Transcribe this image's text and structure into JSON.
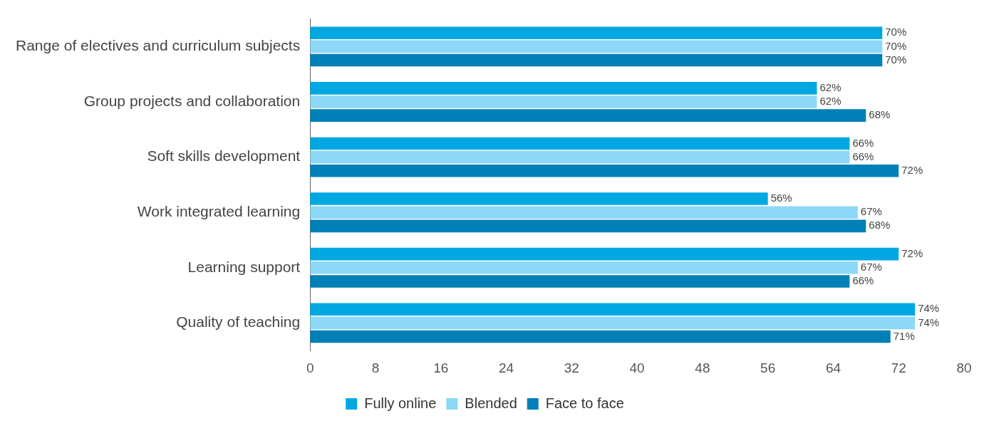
{
  "chart_data": {
    "type": "bar",
    "orientation": "horizontal",
    "categories": [
      "Range of electives and curriculum subjects",
      "Group projects and collaboration",
      "Soft skills development",
      "Work integrated learning",
      "Learning support",
      "Quality of teaching"
    ],
    "series": [
      {
        "name": "Fully online",
        "color": "#00a8e1",
        "values": [
          70,
          62,
          66,
          56,
          72,
          74
        ],
        "value_labels": [
          "70%",
          "62%",
          "66%",
          "56%",
          "72%",
          "74%"
        ]
      },
      {
        "name": "Blended",
        "color": "#8dd7f7",
        "values": [
          70,
          62,
          66,
          67,
          67,
          74
        ],
        "value_labels": [
          "70%",
          "62%",
          "66%",
          "67%",
          "67%",
          "74%"
        ]
      },
      {
        "name": "Face to face",
        "color": "#0080b7",
        "values": [
          70,
          68,
          72,
          68,
          66,
          71
        ],
        "value_labels": [
          "70%",
          "68%",
          "72%",
          "68%",
          "66%",
          "71%"
        ]
      }
    ],
    "xlim": [
      0,
      80
    ],
    "xticks": [
      0,
      8,
      16,
      24,
      32,
      40,
      48,
      56,
      64,
      72,
      80
    ],
    "grid": false,
    "legend": "bottom"
  }
}
